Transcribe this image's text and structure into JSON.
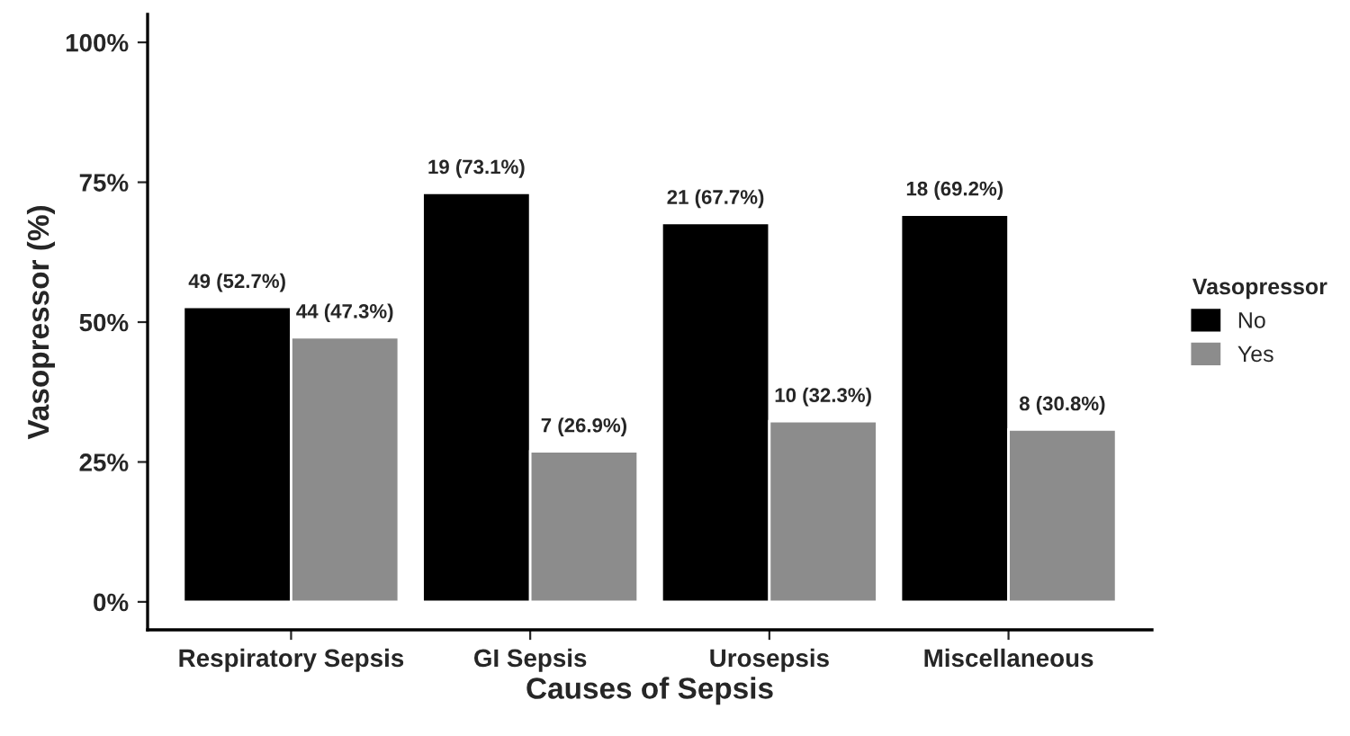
{
  "chart_data": {
    "type": "bar",
    "xlabel": "Causes of Sepsis",
    "ylabel": "Vasopressor (%)",
    "legend_title": "Vasopressor",
    "legend": "right",
    "categories": [
      "Respiratory Sepsis",
      "GI Sepsis",
      "Urosepsis",
      "Miscellaneous"
    ],
    "series": [
      {
        "name": "No",
        "color": "#000000",
        "values": [
          52.7,
          73.1,
          67.7,
          69.2
        ],
        "value_labels": [
          "49 (52.7%)",
          "19 (73.1%)",
          "21 (67.7%)",
          "18 (69.2%)"
        ]
      },
      {
        "name": "Yes",
        "color": "#8c8c8c",
        "values": [
          47.3,
          26.9,
          32.3,
          30.8
        ],
        "value_labels": [
          "44 (47.3%)",
          "7 (26.9%)",
          "10 (32.3%)",
          "8 (30.8%)"
        ]
      }
    ],
    "ylim": [
      -5,
      105
    ],
    "yticks": [
      {
        "value": 0,
        "label": "0%"
      },
      {
        "value": 25,
        "label": "25%"
      },
      {
        "value": 50,
        "label": "50%"
      },
      {
        "value": 75,
        "label": "75%"
      },
      {
        "value": 100,
        "label": "100%"
      }
    ],
    "grid": false
  }
}
